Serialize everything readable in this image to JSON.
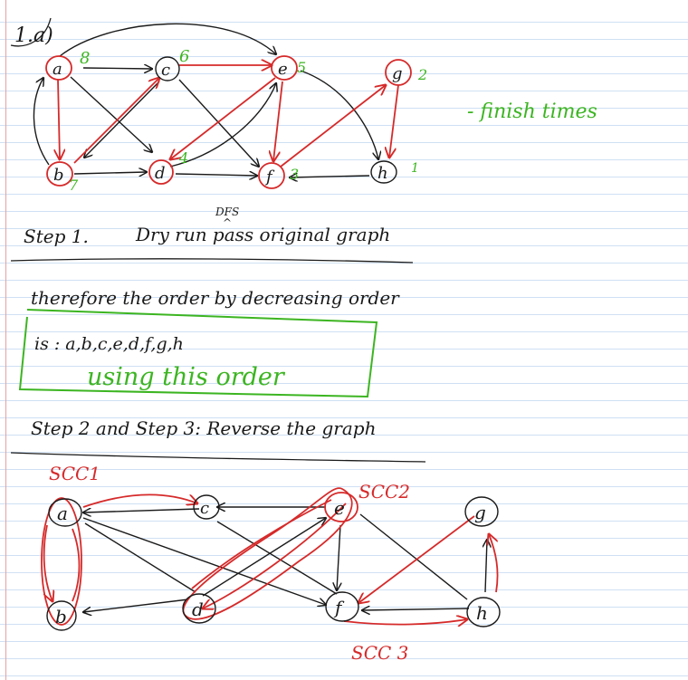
{
  "question_label": "1.a)",
  "legend_note": "- finish times",
  "graph1": {
    "nodes": [
      {
        "label": "a",
        "finish": "8"
      },
      {
        "label": "c",
        "finish": "6"
      },
      {
        "label": "e",
        "finish": "5"
      },
      {
        "label": "g",
        "finish": "2"
      },
      {
        "label": "b",
        "finish": "7"
      },
      {
        "label": "d",
        "finish": "4"
      },
      {
        "label": "f",
        "finish": "3"
      },
      {
        "label": "h",
        "finish": "1"
      }
    ]
  },
  "step1": {
    "prefix": "Step 1.",
    "text": "Dry run pass original graph",
    "dfs_annotation": "DFS"
  },
  "order_intro": "therefore the order by decreasing order",
  "order_text": "is : a,b,c,e,d,f,g,h",
  "using_text": "using this order",
  "step2": {
    "text": "Step 2 and Step 3: Reverse the graph"
  },
  "graph2": {
    "nodes": [
      {
        "label": "a"
      },
      {
        "label": "c"
      },
      {
        "label": "e"
      },
      {
        "label": "g"
      },
      {
        "label": "b"
      },
      {
        "label": "d"
      },
      {
        "label": "f"
      },
      {
        "label": "h"
      }
    ],
    "scc_labels": [
      "SCC1",
      "SCC2",
      "SCC 3"
    ]
  }
}
